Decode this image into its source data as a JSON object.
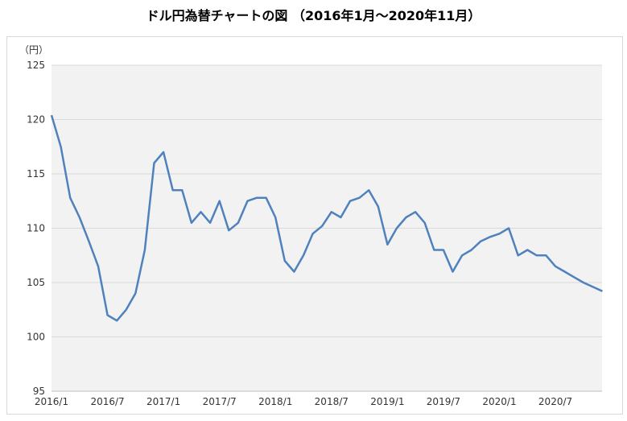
{
  "chart_data": {
    "type": "line",
    "title": "ドル円為替チャートの図 （2016年1月～2020年11月）",
    "ylabel": "（円）",
    "xlabel": "",
    "ylim": [
      95,
      125
    ],
    "yticks": [
      95,
      100,
      105,
      110,
      115,
      120,
      125
    ],
    "xticks": [
      "2016/1",
      "2016/7",
      "2017/1",
      "2017/7",
      "2018/1",
      "2018/7",
      "2019/1",
      "2019/7",
      "2020/1",
      "2020/7"
    ],
    "grid": true,
    "plot_background": "#f2f2f2",
    "line_color": "#4f81bd",
    "series": [
      {
        "x": [
          "2016/1",
          "2016/2",
          "2016/3",
          "2016/4",
          "2016/5",
          "2016/6",
          "2016/7",
          "2016/8",
          "2016/9",
          "2016/10",
          "2016/11",
          "2016/12",
          "2017/1",
          "2017/2",
          "2017/3",
          "2017/4",
          "2017/5",
          "2017/6",
          "2017/7",
          "2017/8",
          "2017/9",
          "2017/10",
          "2017/11",
          "2017/12",
          "2018/1",
          "2018/2",
          "2018/3",
          "2018/4",
          "2018/5",
          "2018/6",
          "2018/7",
          "2018/8",
          "2018/9",
          "2018/10",
          "2018/11",
          "2018/12",
          "2019/1",
          "2019/2",
          "2019/3",
          "2019/4",
          "2019/5",
          "2019/6",
          "2019/7",
          "2019/8",
          "2019/9",
          "2019/10",
          "2019/11",
          "2019/12",
          "2020/1",
          "2020/2",
          "2020/3",
          "2020/4",
          "2020/5",
          "2020/6",
          "2020/7",
          "2020/8",
          "2020/9",
          "2020/10",
          "2020/11"
        ],
        "values": [
          120.4,
          117.5,
          112.8,
          111.0,
          108.8,
          106.5,
          102.0,
          101.5,
          102.5,
          104.0,
          108.0,
          116.0,
          117.0,
          113.5,
          113.5,
          110.5,
          111.5,
          110.5,
          112.5,
          109.8,
          110.5,
          112.5,
          112.8,
          112.8,
          111.0,
          107.0,
          106.0,
          107.5,
          109.5,
          110.2,
          111.5,
          111.0,
          112.5,
          112.8,
          113.5,
          112.0,
          108.5,
          110.0,
          111.0,
          111.5,
          110.5,
          108.0,
          108.0,
          106.0,
          107.5,
          108.0,
          108.8,
          109.2,
          109.5,
          110.0,
          107.5,
          108.0,
          107.5,
          107.5,
          106.5,
          106.0,
          105.5,
          105.0,
          104.2
        ]
      }
    ]
  }
}
